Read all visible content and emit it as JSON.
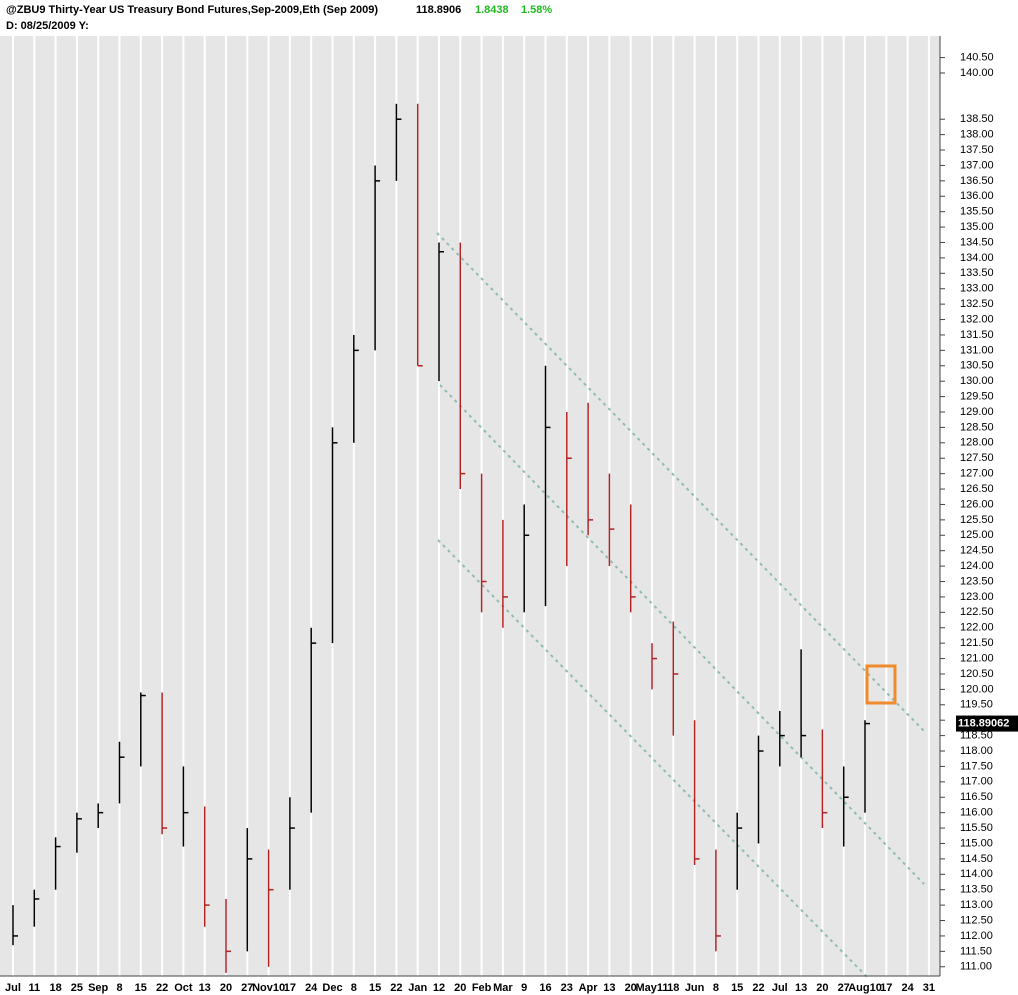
{
  "header": {
    "symbol_title": "@ZBU9 Thirty-Year US Treasury Bond Futures,Sep-2009,Eth (Sep 2009)",
    "last": 118.8906,
    "change": 1.8438,
    "change_percent": "1.58%",
    "info_line": "D: 08/25/2009 Y:"
  },
  "chart_data": {
    "type": "hlc",
    "categories": [
      "Jul",
      "11",
      "18",
      "25",
      "Sep",
      "8",
      "15",
      "22",
      "Oct",
      "13",
      "20",
      "27",
      "Nov10",
      "17",
      "24",
      "Dec",
      "8",
      "15",
      "22",
      "Jan",
      "12",
      "20",
      "Feb",
      "Mar",
      "9",
      "16",
      "23",
      "Apr",
      "13",
      "20",
      "May11",
      "18",
      "Jun",
      "8",
      "15",
      "22",
      "Jul",
      "13",
      "20",
      "27",
      "Aug10",
      "17",
      "24",
      "31"
    ],
    "high": [
      113.0,
      113.5,
      115.2,
      116.0,
      116.3,
      118.3,
      119.9,
      119.9,
      117.5,
      116.2,
      113.2,
      115.5,
      114.8,
      116.5,
      122.0,
      128.5,
      131.5,
      137.0,
      139.0,
      139.0,
      134.5,
      134.5,
      127.0,
      125.5,
      126.0,
      130.5,
      129.0,
      129.3,
      127.0,
      126.0,
      121.5,
      122.2,
      119.0,
      114.8,
      116.0,
      118.5,
      119.3,
      121.3,
      118.7,
      117.5,
      119.0,
      null,
      null,
      null
    ],
    "low": [
      111.7,
      112.3,
      113.5,
      114.7,
      115.5,
      116.3,
      117.5,
      115.3,
      114.9,
      112.3,
      110.8,
      111.5,
      111.0,
      113.5,
      116.0,
      121.5,
      128.0,
      131.0,
      136.5,
      130.5,
      130.0,
      126.5,
      122.5,
      122.0,
      122.5,
      122.7,
      124.0,
      125.0,
      124.0,
      122.5,
      120.0,
      118.5,
      114.3,
      111.5,
      113.5,
      115.0,
      117.5,
      117.8,
      115.5,
      114.9,
      116.0,
      null,
      null,
      null
    ],
    "close": [
      112.0,
      113.2,
      114.9,
      115.8,
      116.0,
      117.8,
      119.8,
      115.5,
      116.0,
      113.0,
      111.5,
      114.5,
      113.5,
      115.5,
      121.5,
      128.0,
      131.0,
      136.5,
      138.5,
      130.5,
      134.2,
      127.0,
      123.5,
      123.0,
      125.0,
      128.5,
      127.5,
      125.5,
      125.2,
      123.0,
      121.0,
      120.5,
      114.5,
      112.0,
      115.5,
      118.0,
      118.5,
      118.5,
      116.0,
      116.5,
      118.89,
      null,
      null,
      null
    ],
    "up_color": "#000000",
    "down_color": "#b22222",
    "last_price": 118.89062,
    "ylim": [
      110.7,
      141.2
    ],
    "yticks": [
      {
        "value": 140.5,
        "label": "140.50"
      },
      {
        "value": 140,
        "label": "140.00"
      },
      {
        "value": 138.5,
        "label": "138.50"
      },
      {
        "value": 138,
        "label": "138.00"
      },
      {
        "value": 137.5,
        "label": "137.50"
      },
      {
        "value": 137,
        "label": "137.00"
      },
      {
        "value": 136.5,
        "label": "136.50"
      },
      {
        "value": 136,
        "label": "136.00"
      },
      {
        "value": 135.5,
        "label": "135.50"
      },
      {
        "value": 135,
        "label": "135.00"
      },
      {
        "value": 134.5,
        "label": "134.50"
      },
      {
        "value": 134,
        "label": "134.00"
      },
      {
        "value": 133.5,
        "label": "133.50"
      },
      {
        "value": 133,
        "label": "133.00"
      },
      {
        "value": 132.5,
        "label": "132.50"
      },
      {
        "value": 132,
        "label": "132.00"
      },
      {
        "value": 131.5,
        "label": "131.50"
      },
      {
        "value": 131,
        "label": "131.00"
      },
      {
        "value": 130.5,
        "label": "130.50"
      },
      {
        "value": 130,
        "label": "130.00"
      },
      {
        "value": 129.5,
        "label": "129.50"
      },
      {
        "value": 129,
        "label": "129.00"
      },
      {
        "value": 128.5,
        "label": "128.50"
      },
      {
        "value": 128,
        "label": "128.00"
      },
      {
        "value": 127.5,
        "label": "127.50"
      },
      {
        "value": 127,
        "label": "127.00"
      },
      {
        "value": 126.5,
        "label": "126.50"
      },
      {
        "value": 126,
        "label": "126.00"
      },
      {
        "value": 125.5,
        "label": "125.50"
      },
      {
        "value": 125,
        "label": "125.00"
      },
      {
        "value": 124.5,
        "label": "124.50"
      },
      {
        "value": 124,
        "label": "124.00"
      },
      {
        "value": 123.5,
        "label": "123.50"
      },
      {
        "value": 123,
        "label": "123.00"
      },
      {
        "value": 122.5,
        "label": "122.50"
      },
      {
        "value": 122,
        "label": "122.00"
      },
      {
        "value": 121.5,
        "label": "121.50"
      },
      {
        "value": 121,
        "label": "121.00"
      },
      {
        "value": 120.5,
        "label": "120.50"
      },
      {
        "value": 120,
        "label": "120.00"
      },
      {
        "value": 119.5,
        "label": "119.50"
      },
      {
        "value": 119,
        "label": "119.00"
      },
      {
        "value": 118.5,
        "label": "118.50"
      },
      {
        "value": 118,
        "label": "118.00"
      },
      {
        "value": 117.5,
        "label": "117.50"
      },
      {
        "value": 117,
        "label": "117.00"
      },
      {
        "value": 116.5,
        "label": "116.50"
      },
      {
        "value": 116,
        "label": "116.00"
      },
      {
        "value": 115.5,
        "label": "115.50"
      },
      {
        "value": 115,
        "label": "115.00"
      },
      {
        "value": 114.5,
        "label": "114.50"
      },
      {
        "value": 114,
        "label": "114.00"
      },
      {
        "value": 113.5,
        "label": "113.50"
      },
      {
        "value": 113,
        "label": "113.00"
      },
      {
        "value": 112.5,
        "label": "112.50"
      },
      {
        "value": 112,
        "label": "112.00"
      },
      {
        "value": 111.5,
        "label": "111.50"
      },
      {
        "value": 111,
        "label": "111.00"
      }
    ],
    "grid": true
  }
}
